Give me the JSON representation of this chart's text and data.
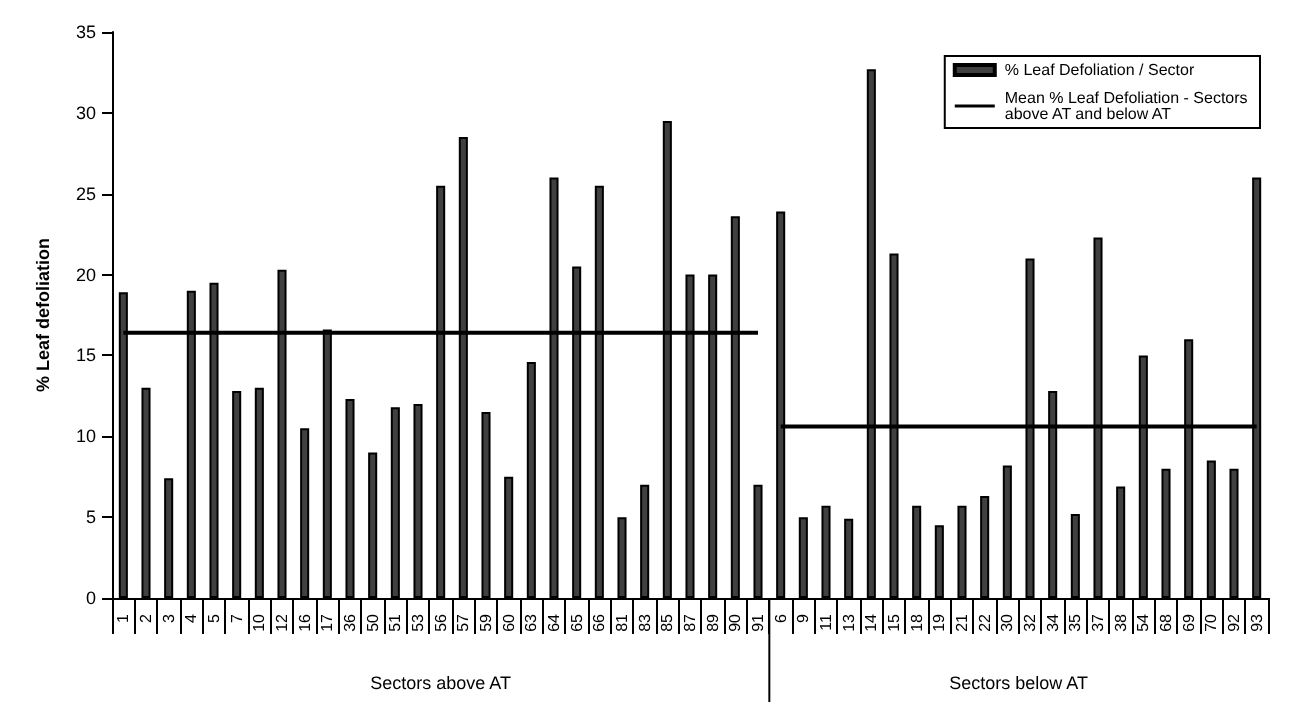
{
  "chart_data": {
    "type": "bar",
    "ylabel": "% Leaf defoliation",
    "categories": [
      "1",
      "2",
      "3",
      "4",
      "5",
      "7",
      "10",
      "12",
      "16",
      "17",
      "36",
      "50",
      "51",
      "53",
      "56",
      "57",
      "59",
      "60",
      "63",
      "64",
      "65",
      "66",
      "81",
      "83",
      "85",
      "87",
      "89",
      "90",
      "91",
      "6",
      "9",
      "11",
      "13",
      "14",
      "15",
      "18",
      "19",
      "21",
      "22",
      "30",
      "32",
      "34",
      "35",
      "37",
      "38",
      "54",
      "68",
      "69",
      "70",
      "92",
      "93"
    ],
    "series": [
      {
        "name": "% Leaf Defoliation / Sector",
        "color": "#404040",
        "values": [
          18.9,
          13,
          7.4,
          19,
          19.5,
          12.8,
          13,
          20.3,
          10.5,
          16.6,
          12.3,
          9,
          11.8,
          12,
          25.5,
          28.5,
          11.5,
          7.5,
          14.6,
          26,
          20.5,
          25.5,
          5,
          7,
          29.5,
          20,
          20,
          23.6,
          7,
          23.9,
          5,
          5.7,
          4.9,
          32.7,
          21.3,
          5.7,
          4.5,
          5.7,
          6.3,
          8.2,
          21,
          12.8,
          5.2,
          22.3,
          6.9,
          15,
          8,
          16,
          8.5,
          8,
          26
        ]
      },
      {
        "name": "Mean % Leaf Defoliation - Sectors above AT and below AT",
        "type": "line",
        "color": "#000000",
        "values": [
          16.4,
          16.4,
          16.4,
          16.4,
          16.4,
          16.4,
          16.4,
          16.4,
          16.4,
          16.4,
          16.4,
          16.4,
          16.4,
          16.4,
          16.4,
          16.4,
          16.4,
          16.4,
          16.4,
          16.4,
          16.4,
          16.4,
          16.4,
          16.4,
          16.4,
          16.4,
          16.4,
          16.4,
          16.4,
          10.6,
          10.6,
          10.6,
          10.6,
          10.6,
          10.6,
          10.6,
          10.6,
          10.6,
          10.6,
          10.6,
          10.6,
          10.6,
          10.6,
          10.6,
          10.6,
          10.6,
          10.6,
          10.6,
          10.6,
          10.6,
          10.6
        ]
      }
    ],
    "annotations": [
      "Sectors above AT",
      "Sectors below AT"
    ],
    "ylim": [
      0,
      35
    ],
    "yticks": [
      0,
      5,
      10,
      15,
      20,
      25,
      30,
      35
    ],
    "grid": false,
    "legend": "top right",
    "marker": "none",
    "line_style": "solid"
  }
}
